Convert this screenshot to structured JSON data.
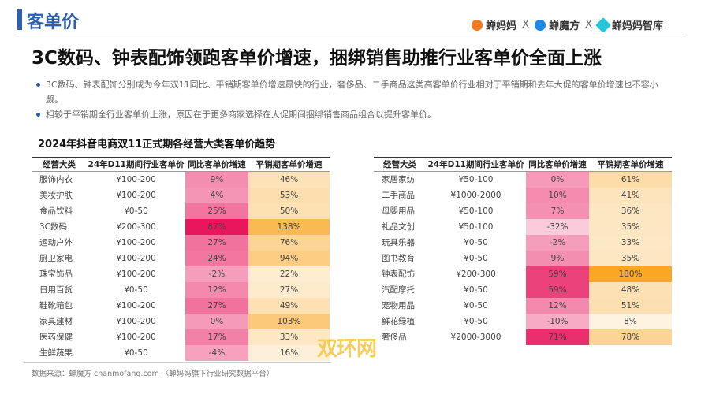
{
  "header": {
    "section": "客单价",
    "brands": [
      "蝉妈妈",
      "蝉魔方",
      "蝉妈妈智库"
    ],
    "sep": "X"
  },
  "headline": "3C数码、钟表配饰领跑客单价增速，捆绑销售助推行业客单价全面上涨",
  "bullets": [
    "3C数码、钟表配饰分别成为今年双11同比、平销期客单价增速最快的行业，奢侈品、二手商品这类高客单价行业相对于平销期和去年大促的客单价增速也不容小觑。",
    "相较于平销期全行业客单价上涨，原因在于更多商家选择在大促期间捆绑销售商品组合以提升客单价。"
  ],
  "table_title": "2024年抖音电商双11正式期各经营大类客单价趋势",
  "columns": [
    "经营大类",
    "24年D11期间行业客单价",
    "同比客单价增速",
    "平销期客单价增速"
  ],
  "colors": {
    "accent": "#2f5fa8",
    "yoy_scale": "#e8175d",
    "flat_scale": "#f9a825"
  },
  "left_rows": [
    [
      "服饰内衣",
      "¥100-200",
      "9%",
      "46%"
    ],
    [
      "美妆护肤",
      "¥100-200",
      "4%",
      "53%"
    ],
    [
      "食品饮料",
      "¥0-50",
      "25%",
      "50%"
    ],
    [
      "3C数码",
      "¥200-300",
      "87%",
      "138%"
    ],
    [
      "运动户外",
      "¥100-200",
      "27%",
      "76%"
    ],
    [
      "厨卫家电",
      "¥100-200",
      "24%",
      "94%"
    ],
    [
      "珠宝饰品",
      "¥100-200",
      "-2%",
      "22%"
    ],
    [
      "日用百货",
      "¥0-50",
      "12%",
      "27%"
    ],
    [
      "鞋靴箱包",
      "¥100-200",
      "27%",
      "49%"
    ],
    [
      "家具建材",
      "¥100-200",
      "0%",
      "103%"
    ],
    [
      "医药保健",
      "¥100-200",
      "17%",
      "33%"
    ],
    [
      "生鲜蔬果",
      "¥0-50",
      "-4%",
      "16%"
    ]
  ],
  "right_rows": [
    [
      "家居家纺",
      "¥50-100",
      "0%",
      "61%"
    ],
    [
      "二手商品",
      "¥1000-2000",
      "10%",
      "41%"
    ],
    [
      "母婴用品",
      "¥50-100",
      "7%",
      "36%"
    ],
    [
      "礼品文创",
      "¥50-100",
      "-32%",
      "35%"
    ],
    [
      "玩具乐器",
      "¥0-50",
      "-2%",
      "33%"
    ],
    [
      "图书教育",
      "¥0-50",
      "9%",
      "35%"
    ],
    [
      "钟表配饰",
      "¥200-300",
      "59%",
      "180%"
    ],
    [
      "汽配摩托",
      "¥0-50",
      "59%",
      "48%"
    ],
    [
      "宠物用品",
      "¥0-50",
      "12%",
      "51%"
    ],
    [
      "鲜花绿植",
      "¥0-50",
      "-10%",
      "8%"
    ],
    [
      "奢侈品",
      "¥2000-3000",
      "71%",
      "78%"
    ]
  ],
  "footer": "数据来源：蝉魔方 chanmofang.com （蝉妈妈旗下行业研究数据平台）",
  "watermark": "双环网"
}
